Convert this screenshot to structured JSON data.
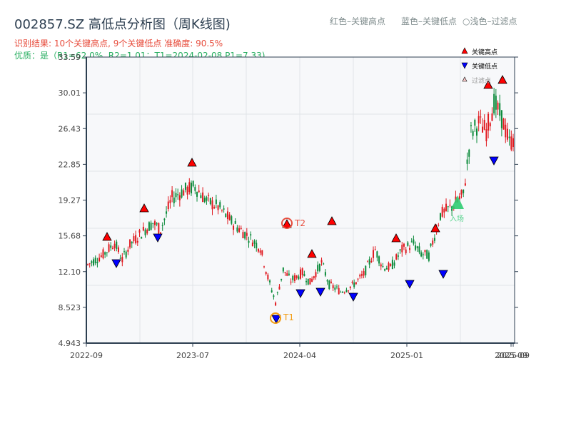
{
  "header": {
    "title": "002857.SZ 高低点分析图（周K线图)",
    "result_line": "识别结果: 10个关键高点, 9个关键低点  准确度: 90.5%",
    "quality_line": "优质：是（R1=62.0%, R2=1.01；T1=2024-02-08 P1=7.33)",
    "legend_red": "红色–关键高点",
    "legend_blue": "蓝色–关键低点",
    "legend_light": "○浅色–过滤点"
  },
  "legend": {
    "items": [
      {
        "label": "关键高点",
        "color": "#ff0000",
        "shape": "triangle-up"
      },
      {
        "label": "关键低点",
        "color": "#0000ff",
        "shape": "triangle-down"
      },
      {
        "label": "过滤点",
        "color": "#ffcccc",
        "shape": "triangle-up-small"
      }
    ]
  },
  "annotations": {
    "t1_label": "T1",
    "t2_label": "T2",
    "entry_label": "入场"
  },
  "colors": {
    "up": "#e0191f",
    "down": "#0b8a3a",
    "high_marker": "#ff0000",
    "low_marker": "#0000ff",
    "t1": "#f39c12",
    "t2": "#e74c3c",
    "entry": "#2ecc71",
    "axis": "#2c3e50",
    "grid": "#e1e4e8",
    "plot_bg": "#f7f8fa"
  },
  "chart_data": {
    "type": "candlestick",
    "title": "002857.SZ 高低点分析图（周K线图)",
    "xlabel": "",
    "ylabel": "",
    "y_ticks": [
      "33.59",
      "30.01",
      "26.43",
      "22.85",
      "19.27",
      "15.68",
      "12.10",
      "8.523",
      "4.943"
    ],
    "ylim": [
      4.943,
      33.59
    ],
    "x_ticks": [
      "2022-09",
      "2023-07",
      "2024-04",
      "2025-01",
      "2025-09",
      "2025-09"
    ],
    "grid": true,
    "key_highs": [
      {
        "date": "2022-11",
        "price": 15.5
      },
      {
        "date": "2023-02",
        "price": 18.3
      },
      {
        "date": "2023-07",
        "price": 22.8
      },
      {
        "date": "2024-03",
        "price": 16.7
      },
      {
        "date": "2024-05",
        "price": 13.5
      },
      {
        "date": "2024-06",
        "price": 16.9
      },
      {
        "date": "2024-12",
        "price": 15.3
      },
      {
        "date": "2025-04",
        "price": 16.2
      },
      {
        "date": "2025-08",
        "price": 30.6
      },
      {
        "date": "2025-08",
        "price": 31.2
      }
    ],
    "key_lows": [
      {
        "date": "2022-12",
        "price": 12.8
      },
      {
        "date": "2023-03",
        "price": 15.4
      },
      {
        "date": "2024-02",
        "price": 7.33
      },
      {
        "date": "2024-04",
        "price": 10.3
      },
      {
        "date": "2024-05",
        "price": 10.4
      },
      {
        "date": "2024-08",
        "price": 9.9
      },
      {
        "date": "2025-01",
        "price": 11.1
      },
      {
        "date": "2025-04",
        "price": 11.9
      },
      {
        "date": "2025-08",
        "price": 23.7
      }
    ],
    "t1": {
      "date": "2024-02-08",
      "price": 7.33
    },
    "t2": {
      "date": "2024-03",
      "price": 16.7
    },
    "entry": {
      "date": "2025-05",
      "price": 18.9
    },
    "legend_position": "upper right"
  }
}
